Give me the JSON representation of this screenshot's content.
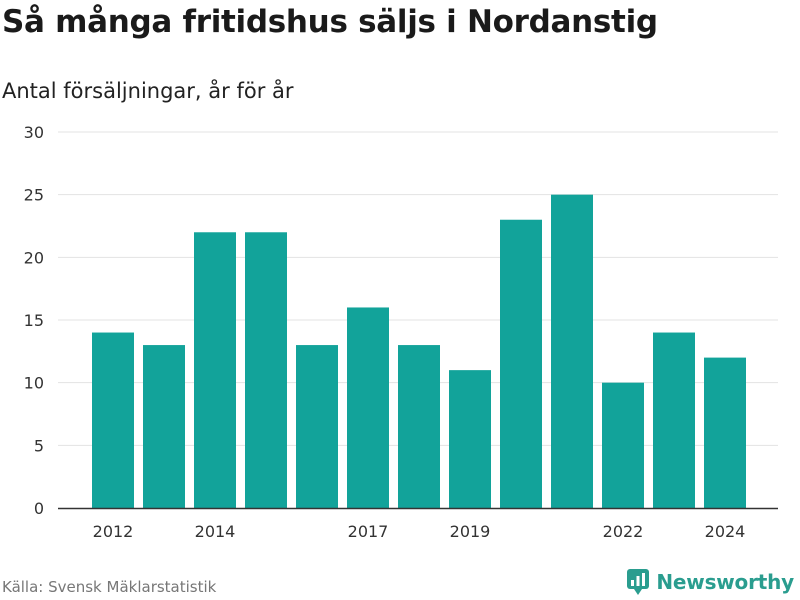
{
  "header": {
    "title": "Så många fritidshus säljs i Nordanstig",
    "subtitle": "Antal försäljningar, år för år"
  },
  "footer": {
    "source": "Källa: Svensk Mäklarstatistik",
    "brand": "Newsworthy",
    "brand_icon": "bar-chart-logo-icon"
  },
  "colors": {
    "bar": "#12a39a",
    "grid": "#e3e3e3",
    "axis": "#333333",
    "brand": "#2a9d8f"
  },
  "chart_data": {
    "type": "bar",
    "categories": [
      "2012",
      "2013",
      "2014",
      "2015",
      "2016",
      "2017",
      "2018",
      "2019",
      "2020",
      "2021",
      "2022",
      "2023",
      "2024"
    ],
    "values": [
      14,
      13,
      22,
      22,
      13,
      16,
      13,
      11,
      23,
      25,
      10,
      14,
      12
    ],
    "shown_tick_labels": [
      "2012",
      "2014",
      "2017",
      "2019",
      "2022",
      "2024"
    ],
    "y_ticks": [
      0,
      5,
      10,
      15,
      20,
      25,
      30
    ],
    "ylim": [
      0,
      30
    ],
    "grid": true,
    "title": "Så många fritidshus säljs i Nordanstig",
    "subtitle": "Antal försäljningar, år för år",
    "xlabel": "",
    "ylabel": ""
  }
}
